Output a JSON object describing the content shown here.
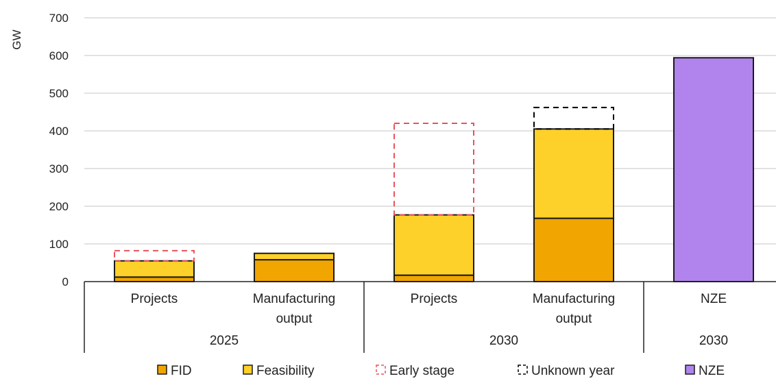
{
  "chart_data": {
    "type": "bar",
    "stacked": true,
    "ylabel": "GW",
    "ylim": [
      0,
      700
    ],
    "yticks": [
      0,
      100,
      200,
      300,
      400,
      500,
      600,
      700
    ],
    "grid": true,
    "legend_position": "bottom",
    "categories": [
      {
        "label": "Projects",
        "group": "2025"
      },
      {
        "label": "Manufacturing output",
        "group": "2025"
      },
      {
        "label": "Projects",
        "group": "2030"
      },
      {
        "label": "Manufacturing output",
        "group": "2030"
      },
      {
        "label": "NZE",
        "group": "2030"
      }
    ],
    "groups": [
      {
        "label": "2025",
        "span": [
          0,
          1
        ]
      },
      {
        "label": "2030",
        "span": [
          2,
          3
        ]
      },
      {
        "label": "2030",
        "span": [
          4,
          4
        ]
      }
    ],
    "series": [
      {
        "name": "FID",
        "style": "solid",
        "color": "#f0a500",
        "values": [
          12,
          58,
          17,
          168,
          0
        ]
      },
      {
        "name": "Feasibility",
        "style": "solid",
        "color": "#fdd02a",
        "values": [
          43,
          17,
          160,
          237,
          0
        ]
      },
      {
        "name": "Early stage",
        "style": "dashed",
        "color": "#e8525a",
        "values": [
          27,
          0,
          243,
          0,
          0
        ]
      },
      {
        "name": "Unknown year",
        "style": "dashed",
        "color": "#000000",
        "values": [
          0,
          0,
          0,
          57,
          0
        ]
      },
      {
        "name": "NZE",
        "style": "solid",
        "color": "#b084ec",
        "values": [
          0,
          0,
          0,
          0,
          594
        ]
      }
    ]
  }
}
